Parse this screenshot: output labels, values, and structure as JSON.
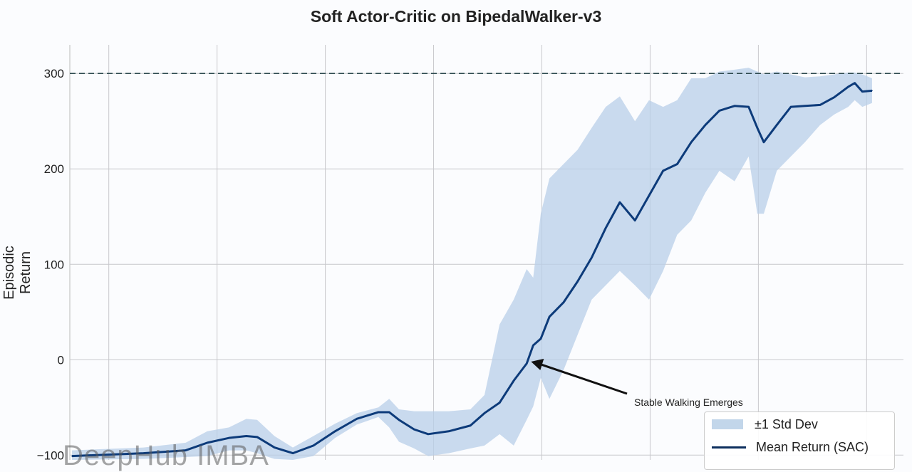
{
  "chart_data": {
    "type": "line",
    "title": "Soft Actor-Critic on BipedalWalker-v3",
    "xlabel": "",
    "ylabel": "Episodic Return",
    "ylim": [
      -105,
      330
    ],
    "xlim": [
      -0.36,
      7.34
    ],
    "x_gridlines": [
      0,
      1,
      2,
      3,
      4,
      5,
      6,
      7
    ],
    "y_ticks": [
      -100,
      0,
      100,
      200,
      300
    ],
    "y_tick_labels": [
      "−100",
      "0",
      "100",
      "200",
      "300"
    ],
    "grid": true,
    "threshold_line": {
      "y": 300,
      "style": "dashed",
      "color": "#2e4a4f"
    },
    "legend_position": "bottom-right",
    "x": [
      -0.34,
      0.32,
      0.71,
      0.91,
      1.11,
      1.27,
      1.37,
      1.53,
      1.7,
      1.89,
      2.09,
      2.29,
      2.49,
      2.59,
      2.68,
      2.82,
      2.95,
      3.14,
      3.34,
      3.47,
      3.61,
      3.74,
      3.86,
      3.92,
      3.99,
      4.07,
      4.2,
      4.33,
      4.46,
      4.59,
      4.72,
      4.86,
      4.99,
      5.12,
      5.25,
      5.38,
      5.51,
      5.64,
      5.78,
      5.91,
      5.99,
      6.05,
      6.17,
      6.3,
      6.43,
      6.57,
      6.7,
      6.83,
      6.89,
      6.96,
      7.05
    ],
    "series": [
      {
        "name": "Mean Return (SAC)",
        "color": "#0d3b7a",
        "values": [
          -101,
          -98,
          -95,
          -87,
          -82,
          -80,
          -81,
          -92,
          -98,
          -90,
          -75,
          -62,
          -55,
          -55,
          -63,
          -73,
          -78,
          -75,
          -69,
          -56,
          -45,
          -22,
          -4,
          15,
          22,
          45,
          60,
          82,
          107,
          138,
          165,
          146,
          172,
          198,
          205,
          228,
          246,
          261,
          266,
          265,
          243,
          228,
          246,
          265,
          266,
          267,
          275,
          286,
          290,
          281,
          282
        ]
      },
      {
        "name": "±1 Std Dev",
        "type": "band",
        "color": "#b8cfe8",
        "upper": [
          -95,
          -92,
          -87,
          -75,
          -71,
          -62,
          -63,
          -80,
          -92,
          -80,
          -67,
          -56,
          -50,
          -41,
          -52,
          -54,
          -54,
          -54,
          -52,
          -37,
          37,
          63,
          95,
          86,
          153,
          190,
          205,
          220,
          243,
          265,
          276,
          250,
          272,
          265,
          272,
          295,
          295,
          302,
          304,
          306,
          302,
          299,
          302,
          299,
          296,
          297,
          299,
          301,
          301,
          299,
          295
        ],
        "lower": [
          -105,
          -104,
          -102,
          -101,
          -95,
          -95,
          -98,
          -104,
          -105,
          -101,
          -82,
          -68,
          -60,
          -71,
          -86,
          -93,
          -101,
          -98,
          -93,
          -90,
          -78,
          -90,
          -63,
          -49,
          -19,
          -41,
          -11,
          26,
          63,
          78,
          93,
          78,
          63,
          93,
          131,
          146,
          175,
          198,
          187,
          213,
          153,
          153,
          198,
          213,
          228,
          246,
          257,
          265,
          272,
          265,
          269
        ]
      }
    ],
    "annotation": {
      "text": "Stable Walking Emerges",
      "arrow_to": {
        "x": 3.9,
        "y": -2
      }
    }
  },
  "legend": {
    "band_label": "±1 Std Dev",
    "line_label": "Mean Return (SAC)"
  },
  "watermark": "DeepHub IMBA"
}
